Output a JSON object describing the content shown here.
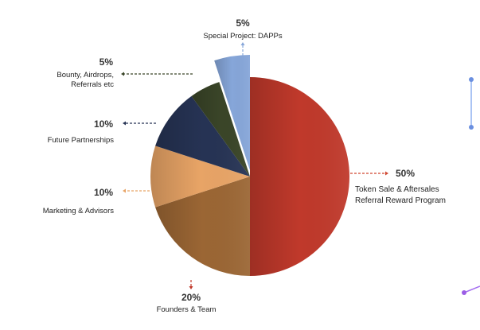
{
  "chart_data": {
    "type": "pie",
    "title": "",
    "slices": [
      {
        "label": "Token Sale & Aftersales Referral Reward Program",
        "label_lines": [
          "Token Sale & Aftersales",
          "Referral Reward Program"
        ],
        "value": 50,
        "value_label": "50%",
        "color": "#c0392b"
      },
      {
        "label": "Founders & Team",
        "label_lines": [
          "Founders & Team"
        ],
        "value": 20,
        "value_label": "20%",
        "color": "#9b6634"
      },
      {
        "label": "Marketing & Advisors",
        "label_lines": [
          "Marketing & Advisors"
        ],
        "value": 10,
        "value_label": "10%",
        "color": "#e8a466"
      },
      {
        "label": "Future Partnerships",
        "label_lines": [
          "Future Partnerships"
        ],
        "value": 10,
        "value_label": "10%",
        "color": "#263354"
      },
      {
        "label": "Bounty, Airdrops, Referrals etc",
        "label_lines": [
          "Bounty, Airdrops,",
          "Referrals etc"
        ],
        "value": 5,
        "value_label": "5%",
        "color": "#3a4528"
      },
      {
        "label": "Special Project: DAPPs",
        "label_lines": [
          "Special Project: DAPPs"
        ],
        "value": 5,
        "value_label": "5%",
        "color": "#86a6d9"
      }
    ],
    "start_angle_deg": 0,
    "direction": "clockwise",
    "explode": "Special Project: DAPPs",
    "legend": "callouts"
  }
}
